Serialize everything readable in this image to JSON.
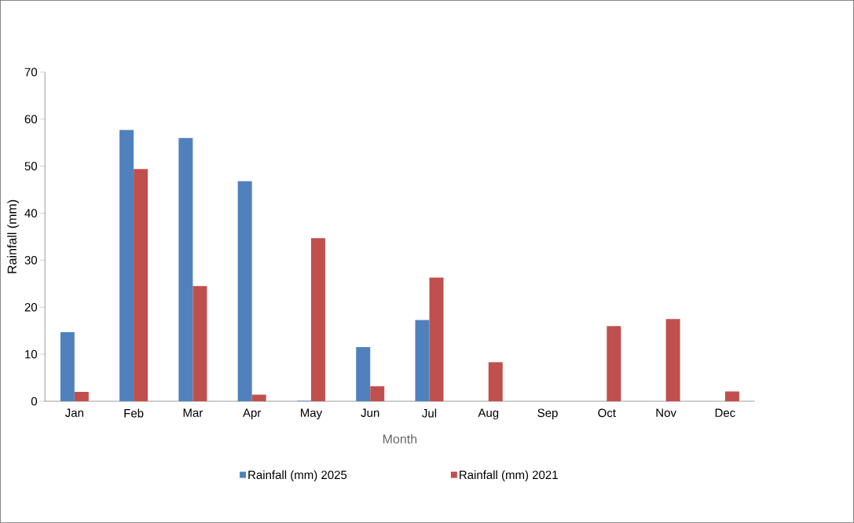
{
  "chart_data": {
    "type": "bar",
    "xlabel": "Month",
    "ylabel": "Rainfall (mm)",
    "categories": [
      "Jan",
      "Feb",
      "Mar",
      "Apr",
      "May",
      "Jun",
      "Jul",
      "Aug",
      "Sep",
      "Oct",
      "Nov",
      "Dec"
    ],
    "series": [
      {
        "name": "Rainfall (mm) 2025",
        "color": "#4f81bd",
        "values": [
          14.7,
          57.7,
          56.0,
          46.8,
          0.1,
          11.5,
          17.3,
          0,
          0,
          0,
          0,
          0
        ]
      },
      {
        "name": "Rainfall (mm) 2021",
        "color": "#c0504d",
        "values": [
          2.0,
          49.4,
          24.5,
          1.4,
          34.7,
          3.2,
          26.3,
          8.3,
          0,
          16.0,
          17.5,
          2.1
        ]
      }
    ],
    "ylim": [
      0,
      70
    ],
    "yticks": [
      0,
      10,
      20,
      30,
      40,
      50,
      60,
      70
    ],
    "grid": false,
    "legend": "bottom"
  }
}
